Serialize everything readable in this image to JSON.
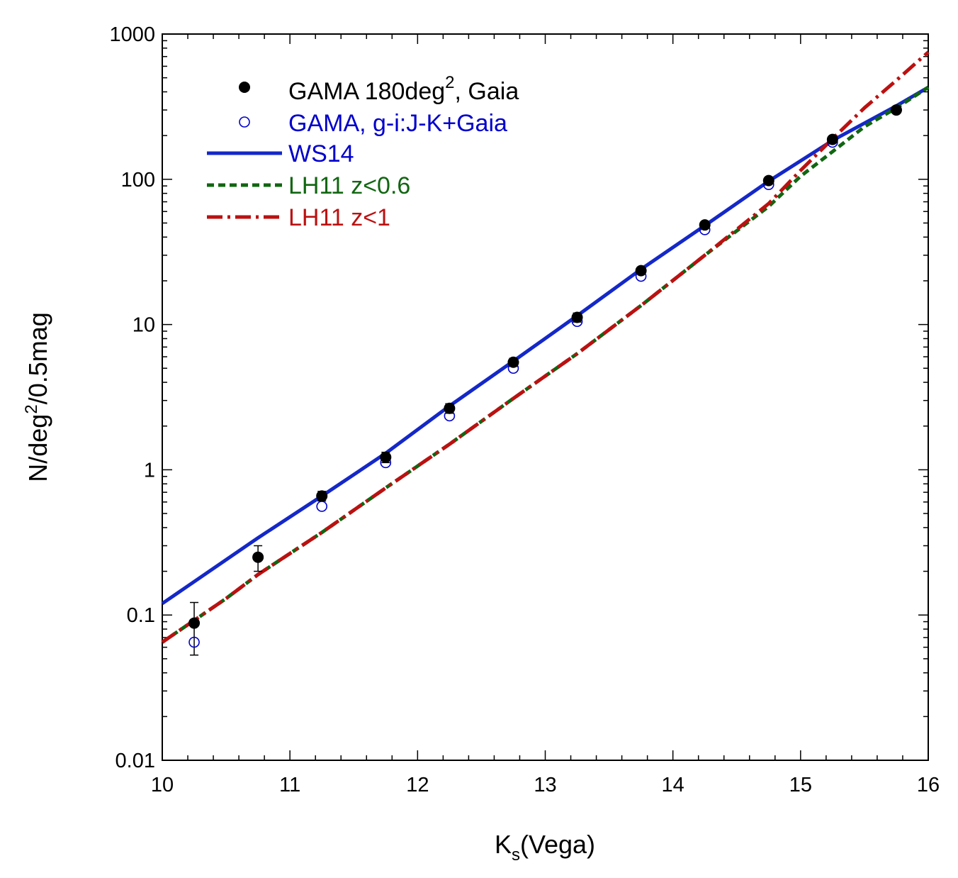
{
  "chart_data": {
    "type": "scatter",
    "title": "",
    "xlabel": {
      "main": "K",
      "sub": "s",
      "rest": "(Vega)"
    },
    "ylabel": {
      "main": "N/deg",
      "sup": "2",
      "rest": "/0.5mag"
    },
    "xlim": [
      10,
      16
    ],
    "ylim": [
      0.01,
      1000
    ],
    "yscale": "log",
    "x_ticks": [
      "10",
      "11",
      "12",
      "13",
      "14",
      "15",
      "16"
    ],
    "y_ticks": [
      "0.01",
      "0.1",
      "1",
      "10",
      "100",
      "1000"
    ],
    "legend_position": "top-left",
    "colors": {
      "black": "#000000",
      "blue": "#0000cc",
      "blue_line": "#1428c8",
      "green": "#116611",
      "red": "#bb1111"
    },
    "series": [
      {
        "name": "GAMA 180deg2, Gaia",
        "legend": {
          "main": "GAMA 180deg",
          "sup": "2",
          "rest": ", Gaia"
        },
        "kind": "points-filled",
        "x": [
          10.25,
          10.75,
          11.25,
          11.75,
          12.25,
          12.75,
          13.25,
          13.75,
          14.25,
          14.75,
          15.25,
          15.75
        ],
        "y": [
          0.088,
          0.25,
          0.66,
          1.22,
          2.65,
          5.5,
          11.2,
          23.5,
          48.5,
          98,
          188,
          300
        ],
        "yerr_low": [
          0.035,
          0.05,
          0.05,
          0.1,
          0.2,
          0.35,
          0.8,
          1.2,
          2,
          4,
          6,
          8
        ],
        "yerr_high": [
          0.034,
          0.05,
          0.05,
          0.1,
          0.2,
          0.35,
          0.8,
          1.2,
          2,
          4,
          6,
          8
        ]
      },
      {
        "name": "GAMA, g-i:J-K+Gaia",
        "legend": {
          "main": "GAMA, g-i:J-K+Gaia",
          "sup": "",
          "rest": ""
        },
        "kind": "points-open",
        "x": [
          10.25,
          10.75,
          11.25,
          11.75,
          12.25,
          12.75,
          13.25,
          13.75,
          14.25,
          14.75,
          15.25,
          15.75
        ],
        "y": [
          0.065,
          0.25,
          0.56,
          1.12,
          2.35,
          5.0,
          10.5,
          21.5,
          45,
          92,
          180,
          300
        ]
      },
      {
        "name": "WS14",
        "legend": {
          "main": "WS14",
          "sup": "",
          "rest": ""
        },
        "kind": "line-solid",
        "x": [
          10,
          10.75,
          11.25,
          11.75,
          12.25,
          12.75,
          13.25,
          13.75,
          14.25,
          14.75,
          15.25,
          15.75,
          16
        ],
        "y": [
          0.12,
          0.34,
          0.66,
          1.3,
          2.75,
          5.6,
          11.5,
          24,
          48,
          97,
          185,
          320,
          430
        ]
      },
      {
        "name": "LH11 z<0.6",
        "legend": {
          "main": "LH11 z<0.6",
          "sup": "",
          "rest": ""
        },
        "kind": "line-dashed",
        "x": [
          10,
          10.5,
          10.75,
          11.25,
          11.75,
          12.25,
          12.75,
          13.25,
          13.75,
          14.25,
          14.75,
          15.0,
          15.25,
          15.5,
          15.75,
          16
        ],
        "y": [
          0.065,
          0.13,
          0.19,
          0.37,
          0.75,
          1.5,
          3.1,
          6.3,
          13.5,
          30,
          65,
          105,
          155,
          230,
          310,
          430
        ]
      },
      {
        "name": "LH11 z<1",
        "legend": {
          "main": "LH11 z<1",
          "sup": "",
          "rest": ""
        },
        "kind": "line-dashdot",
        "x": [
          10,
          10.5,
          10.75,
          11.25,
          11.75,
          12.25,
          12.75,
          13.25,
          13.75,
          14.25,
          14.75,
          15.0,
          15.25,
          15.5,
          15.75,
          16
        ],
        "y": [
          0.065,
          0.13,
          0.19,
          0.37,
          0.75,
          1.5,
          3.1,
          6.3,
          13.5,
          30,
          68,
          115,
          190,
          310,
          480,
          750
        ]
      }
    ]
  }
}
